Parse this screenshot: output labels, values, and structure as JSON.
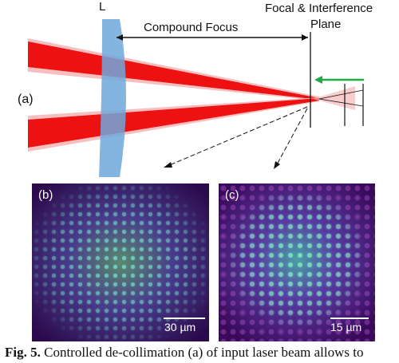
{
  "diagram": {
    "lens_label": "L",
    "compound_focus_label": "Compound Focus",
    "focal_plane_label_line1": "Focal & Interference",
    "focal_plane_label_line2": "Plane",
    "panel_a_label": "(a)",
    "colors": {
      "beam": "#ee1111",
      "beam_halo": "#f5b8b8",
      "lens": "#6fa8dc",
      "green_arrow": "#22aa44"
    }
  },
  "panels": {
    "b": {
      "label": "(b)",
      "scale_text": "30 µm"
    },
    "c": {
      "label": "(c)",
      "scale_text": "15 µm"
    }
  },
  "caption": {
    "prefix": "Fig. 5.",
    "text": " Controlled de-collimation (a) of input laser beam allows to"
  }
}
